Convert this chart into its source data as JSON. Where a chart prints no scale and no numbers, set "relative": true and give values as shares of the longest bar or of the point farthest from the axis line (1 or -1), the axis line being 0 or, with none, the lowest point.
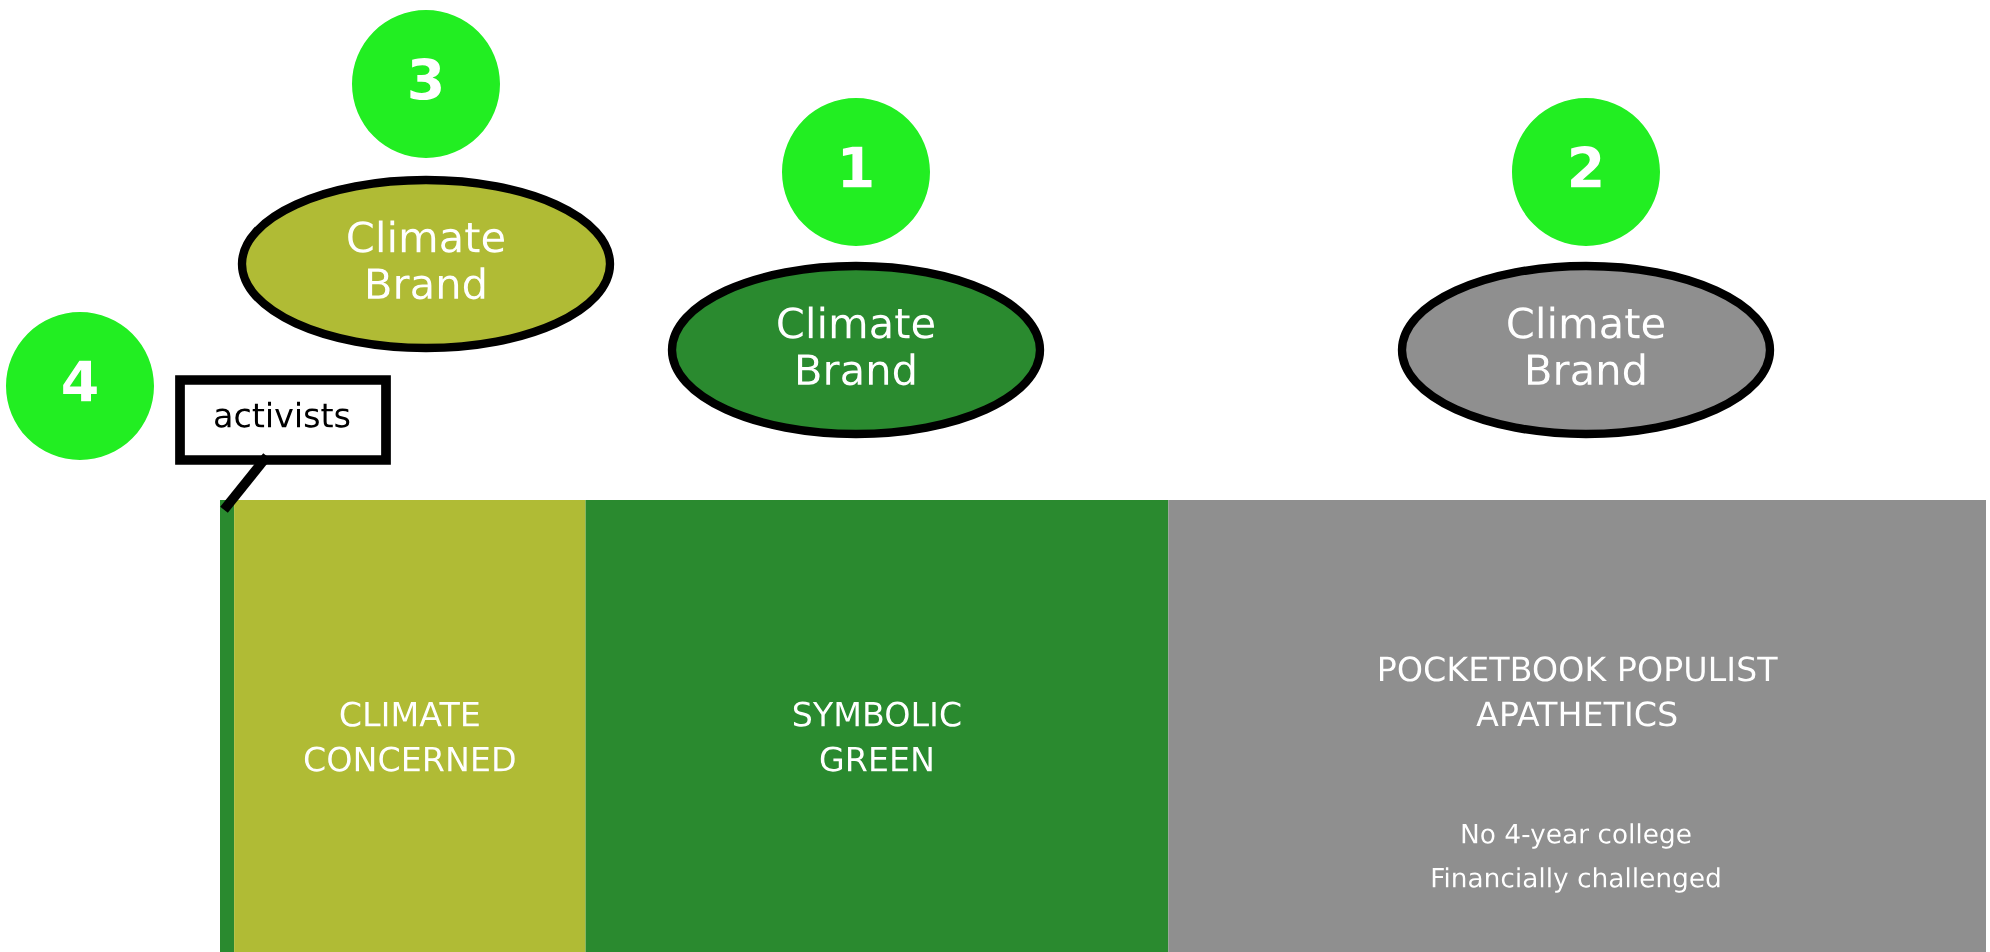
{
  "chart_data": {
    "type": "bar",
    "orientation": "horizontal",
    "stacked": true,
    "relative": true,
    "categories": [
      null
    ],
    "series": [
      {
        "name": "activists",
        "color": "#2a8a2f",
        "values": [
          0.008
        ]
      },
      {
        "name": "CLIMATE CONCERNED",
        "color": "#b0bb35",
        "values": [
          0.199
        ]
      },
      {
        "name": "SYMBOLIC GREEN",
        "color": "#2a8a2f",
        "values": [
          0.33
        ]
      },
      {
        "name": "POCKETBOOK POPULIST APATHETICS",
        "color": "#8f8f8f",
        "values": [
          0.463
        ]
      }
    ],
    "annotations": [
      "3",
      "Climate Brand",
      "1",
      "Climate Brand",
      "2",
      "Climate Brand",
      "4",
      "No 4-year college",
      "Financially challenged"
    ]
  }
}
